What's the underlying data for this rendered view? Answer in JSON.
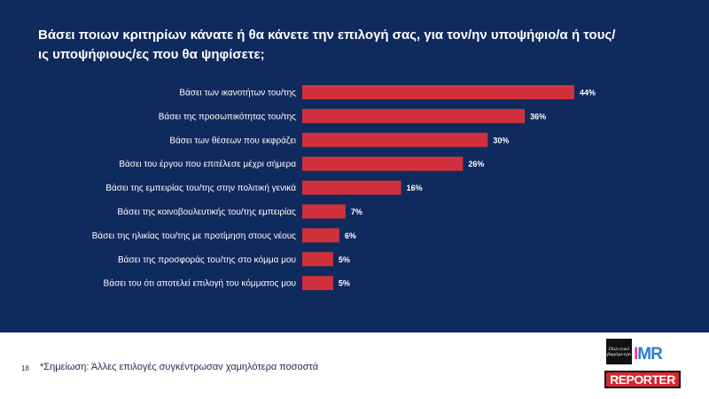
{
  "chart_data": {
    "type": "bar",
    "orientation": "horizontal",
    "title": "Βάσει ποιων κριτηρίων κάνατε ή θα κάνετε την επιλογή σας, για τον/ην υποψήφιο/α ή τους/ις υποψήφιους/ες που θα ψηφίσετε;",
    "categories": [
      "Βάσει των ικανοτήτων του/της",
      "Βάσει της προσωπικότητας του/της",
      "Βάσει των θέσεων που εκφράζει",
      "Βάσει του έργου που επιτέλεσε μέχρι σήμερα",
      "Βάσει της εμπειρίας του/της στην πολιτική γενικά",
      "Βάσει της κοινοβουλευτικής του/της εμπειρίας",
      "Βάσει της ηλικίας του/της με προτίμηση στους νέους",
      "Βάσει της προσφοράς του/της στο κόμμα μου",
      "Βάσει του ότι αποτελεί επιλογή του κόμματος μου"
    ],
    "values": [
      44,
      36,
      30,
      26,
      16,
      7,
      6,
      5,
      5
    ],
    "value_labels": [
      "44%",
      "36%",
      "30%",
      "26%",
      "16%",
      "7%",
      "6%",
      "5%",
      "5%"
    ],
    "unit": "%",
    "xlim": [
      0,
      44
    ],
    "bar_color": "#d0313c",
    "grid": false
  },
  "colors": {
    "panel_bg": "#0f2a5c",
    "bar": "#d0313c",
    "text": "#ffffff"
  },
  "footer": {
    "page_number": "18",
    "note": "*Σημείωση: Άλλες επιλογές συγκέντρωσαν χαμηλότερα ποσοστά",
    "logo_box_text": "Πολιτικό βαρόμετρο",
    "logo_mr_i": "I",
    "logo_mr_rest": "MR",
    "logo_reporter": "REPORTER"
  }
}
